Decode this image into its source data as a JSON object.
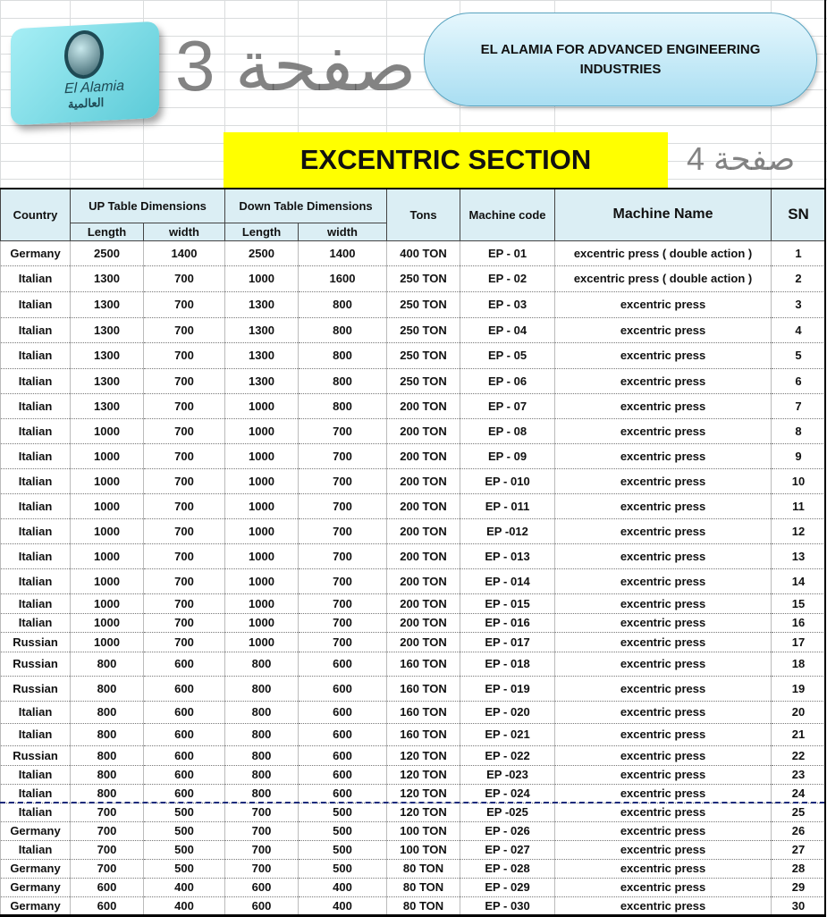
{
  "logo": {
    "text_en": "El Alamia",
    "text_ar": "العالمية"
  },
  "banner": {
    "company": "EL ALAMIA FOR ADVANCED ENGINEERING INDUSTRIES"
  },
  "title": "EXCENTRIC SECTION",
  "headers": {
    "country": "Country",
    "up": "UP Table Dimensions",
    "down": "Down Table Dimensions",
    "tons": "Tons",
    "code": "Machine code",
    "name": "Machine Name",
    "sn": "SN",
    "length": "Length",
    "width": "width"
  },
  "watermarks": [
    "صفحة 3",
    "صفحة 4"
  ],
  "rows": [
    [
      "Germany",
      "2500",
      "1400",
      "2500",
      "1400",
      "400 TON",
      "EP - 01",
      "excentric press ( double action )",
      "1"
    ],
    [
      "Italian",
      "1300",
      "700",
      "1000",
      "1600",
      "250 TON",
      "EP - 02",
      "excentric press ( double action )",
      "2"
    ],
    [
      "Italian",
      "1300",
      "700",
      "1300",
      "800",
      "250 TON",
      "EP - 03",
      "excentric press",
      "3"
    ],
    [
      "Italian",
      "1300",
      "700",
      "1300",
      "800",
      "250 TON",
      "EP - 04",
      "excentric press",
      "4"
    ],
    [
      "Italian",
      "1300",
      "700",
      "1300",
      "800",
      "250 TON",
      "EP - 05",
      "excentric press",
      "5"
    ],
    [
      "Italian",
      "1300",
      "700",
      "1300",
      "800",
      "250 TON",
      "EP - 06",
      "excentric press",
      "6"
    ],
    [
      "Italian",
      "1300",
      "700",
      "1000",
      "800",
      "200 TON",
      "EP - 07",
      "excentric press",
      "7"
    ],
    [
      "Italian",
      "1000",
      "700",
      "1000",
      "700",
      "200 TON",
      "EP - 08",
      "excentric press",
      "8"
    ],
    [
      "Italian",
      "1000",
      "700",
      "1000",
      "700",
      "200 TON",
      "EP - 09",
      "excentric press",
      "9"
    ],
    [
      "Italian",
      "1000",
      "700",
      "1000",
      "700",
      "200 TON",
      "EP - 010",
      "excentric press",
      "10"
    ],
    [
      "Italian",
      "1000",
      "700",
      "1000",
      "700",
      "200 TON",
      "EP - 011",
      "excentric press",
      "11"
    ],
    [
      "Italian",
      "1000",
      "700",
      "1000",
      "700",
      "200 TON",
      "EP -012",
      "excentric press",
      "12"
    ],
    [
      "Italian",
      "1000",
      "700",
      "1000",
      "700",
      "200 TON",
      "EP - 013",
      "excentric press",
      "13"
    ],
    [
      "Italian",
      "1000",
      "700",
      "1000",
      "700",
      "200 TON",
      "EP - 014",
      "excentric press",
      "14"
    ],
    [
      "Italian",
      "1000",
      "700",
      "1000",
      "700",
      "200 TON",
      "EP - 015",
      "excentric press",
      "15"
    ],
    [
      "Italian",
      "1000",
      "700",
      "1000",
      "700",
      "200 TON",
      "EP - 016",
      "excentric press",
      "16"
    ],
    [
      "Russian",
      "1000",
      "700",
      "1000",
      "700",
      "200 TON",
      "EP - 017",
      "excentric press",
      "17"
    ],
    [
      "Russian",
      "800",
      "600",
      "800",
      "600",
      "160 TON",
      "EP - 018",
      "excentric press",
      "18"
    ],
    [
      "Russian",
      "800",
      "600",
      "800",
      "600",
      "160 TON",
      "EP - 019",
      "excentric press",
      "19"
    ],
    [
      "Italian",
      "800",
      "600",
      "800",
      "600",
      "160 TON",
      "EP - 020",
      "excentric press",
      "20"
    ],
    [
      "Italian",
      "800",
      "600",
      "800",
      "600",
      "160 TON",
      "EP - 021",
      "excentric press",
      "21"
    ],
    [
      "Russian",
      "800",
      "600",
      "800",
      "600",
      "120 TON",
      "EP - 022",
      "excentric press",
      "22"
    ],
    [
      "Italian",
      "800",
      "600",
      "800",
      "600",
      "120 TON",
      "EP -023",
      "excentric press",
      "23"
    ],
    [
      "Italian",
      "800",
      "600",
      "800",
      "600",
      "120 TON",
      "EP - 024",
      "excentric press",
      "24"
    ],
    [
      "Italian",
      "700",
      "500",
      "700",
      "500",
      "120 TON",
      "EP -025",
      "excentric press",
      "25"
    ],
    [
      "Germany",
      "700",
      "500",
      "700",
      "500",
      "100 TON",
      "EP - 026",
      "excentric press",
      "26"
    ],
    [
      "Italian",
      "700",
      "500",
      "700",
      "500",
      "100 TON",
      "EP - 027",
      "excentric press",
      "27"
    ],
    [
      "Germany",
      "700",
      "500",
      "700",
      "500",
      "80 TON",
      "EP - 028",
      "excentric press",
      "28"
    ],
    [
      "Germany",
      "600",
      "400",
      "600",
      "400",
      "80 TON",
      "EP - 029",
      "excentric press",
      "29"
    ],
    [
      "Germany",
      "600",
      "400",
      "600",
      "400",
      "80 TON",
      "EP - 030",
      "excentric press",
      "30"
    ]
  ]
}
